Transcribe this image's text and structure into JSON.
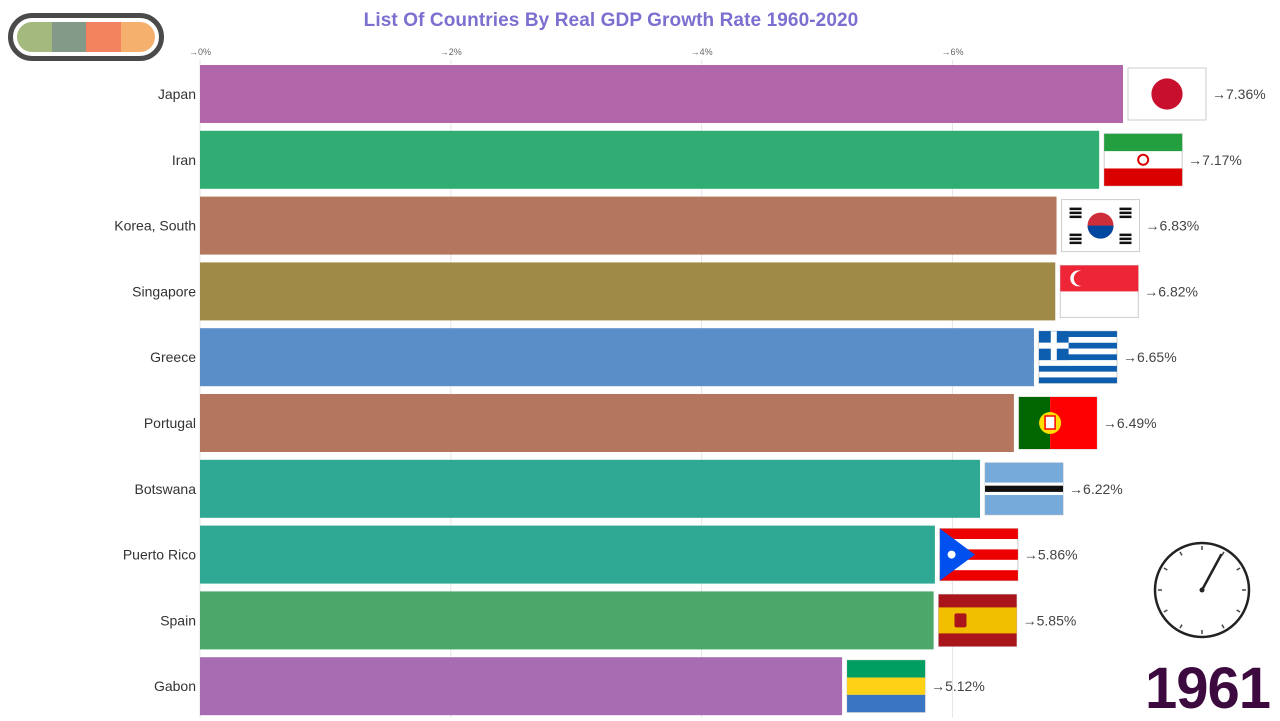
{
  "chart_data": {
    "type": "bar",
    "orientation": "horizontal",
    "title": "List Of Countries By Real GDP Growth Rate 1960-2020",
    "xlabel": "",
    "ylabel": "",
    "xlim": [
      0,
      7.36
    ],
    "ticks": [
      {
        "value": 0,
        "label": "→0%"
      },
      {
        "value": 2,
        "label": "→2%"
      },
      {
        "value": 4,
        "label": "→4%"
      },
      {
        "value": 6,
        "label": "→6%"
      }
    ],
    "categories": [
      "Japan",
      "Iran",
      "Korea, South",
      "Singapore",
      "Greece",
      "Portugal",
      "Botswana",
      "Puerto Rico",
      "Spain",
      "Gabon"
    ],
    "values": [
      7.36,
      7.17,
      6.83,
      6.82,
      6.65,
      6.49,
      6.22,
      5.86,
      5.85,
      5.12
    ],
    "value_labels": [
      "→7.36%",
      "→7.17%",
      "→6.83%",
      "→6.82%",
      "→6.65%",
      "→6.49%",
      "→6.22%",
      "→5.86%",
      "→5.85%",
      "→5.12%"
    ],
    "bar_colors": [
      "#b066a8",
      "#2fad72",
      "#b5765f",
      "#a08a48",
      "#5a8ec8",
      "#b5765f",
      "#2fa894",
      "#2fa894",
      "#4ba86a",
      "#a86cb3"
    ],
    "flags": [
      "japan-flag",
      "iran-flag",
      "south-korea-flag",
      "singapore-flag",
      "greece-flag",
      "portugal-flag",
      "botswana-flag",
      "puerto-rico-flag",
      "spain-flag",
      "gabon-flag"
    ],
    "grid": true,
    "legend": "none"
  },
  "year": "1961",
  "legend_swatch_colors": [
    "#a4b97d",
    "#839a88",
    "#f3835f",
    "#f5b06e"
  ]
}
